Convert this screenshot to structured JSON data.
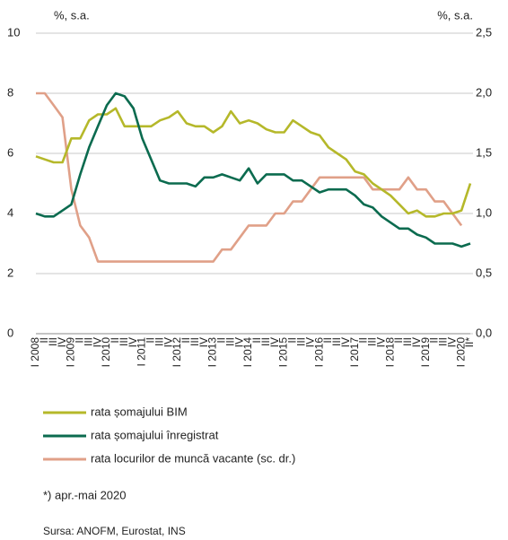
{
  "chart_data": {
    "type": "line",
    "y_label": "%, s.a.",
    "y2_label": "%, s.a.",
    "categories": [
      "I 2008",
      "II",
      "III",
      "IV",
      "I 2009",
      "II",
      "III",
      "IV",
      "I 2010",
      "II",
      "III",
      "IV",
      "I 2011",
      "II",
      "III",
      "IV",
      "I 2012",
      "II",
      "III",
      "IV",
      "I 2013",
      "II",
      "III",
      "IV",
      "I 2014",
      "II",
      "III",
      "IV",
      "I 2015",
      "II",
      "III",
      "IV",
      "I 2016",
      "II",
      "III",
      "IV",
      "I 2017",
      "II",
      "III",
      "IV",
      "I 2018",
      "II",
      "III",
      "IV",
      "I 2019",
      "II",
      "III",
      "IV",
      "I 2020",
      "II*"
    ],
    "series": [
      {
        "name": "rata șomajului BIM",
        "color": "#b5b82a",
        "values": [
          5.9,
          5.8,
          5.7,
          5.7,
          6.5,
          6.5,
          7.1,
          7.3,
          7.3,
          7.5,
          6.9,
          6.9,
          6.9,
          6.9,
          7.1,
          7.2,
          7.4,
          7.0,
          6.9,
          6.9,
          6.7,
          6.9,
          7.4,
          7.0,
          7.1,
          7.0,
          6.8,
          6.7,
          6.7,
          7.1,
          6.9,
          6.7,
          6.6,
          6.2,
          6.0,
          5.8,
          5.4,
          5.3,
          5.0,
          4.8,
          4.6,
          4.3,
          4.0,
          4.1,
          3.9,
          3.9,
          4.0,
          4.0,
          4.1,
          5.0
        ]
      },
      {
        "name": "rata șomajului înregistrat",
        "color": "#0b6b4f",
        "values": [
          4.0,
          3.9,
          3.9,
          4.1,
          4.3,
          5.3,
          6.2,
          6.9,
          7.6,
          8.0,
          7.9,
          7.5,
          6.5,
          5.8,
          5.1,
          5.0,
          5.0,
          5.0,
          4.9,
          5.2,
          5.2,
          5.3,
          5.2,
          5.1,
          5.5,
          5.0,
          5.3,
          5.3,
          5.3,
          5.1,
          5.1,
          4.9,
          4.7,
          4.8,
          4.8,
          4.8,
          4.6,
          4.3,
          4.2,
          3.9,
          3.7,
          3.5,
          3.5,
          3.3,
          3.2,
          3.0,
          3.0,
          3.0,
          2.9,
          3.0
        ]
      },
      {
        "name": "rata locurilor de muncă vacante (sc. dr.)",
        "color": "#e0a088",
        "axis": "y2",
        "values": [
          2.0,
          2.0,
          1.9,
          1.8,
          1.2,
          0.9,
          0.8,
          0.6,
          0.6,
          0.6,
          0.6,
          0.6,
          0.6,
          0.6,
          0.6,
          0.6,
          0.6,
          0.6,
          0.6,
          0.6,
          0.6,
          0.7,
          0.7,
          0.8,
          0.9,
          0.9,
          0.9,
          1.0,
          1.0,
          1.1,
          1.1,
          1.2,
          1.3,
          1.3,
          1.3,
          1.3,
          1.3,
          1.3,
          1.2,
          1.2,
          1.2,
          1.2,
          1.3,
          1.2,
          1.2,
          1.1,
          1.1,
          1.0,
          0.9,
          null
        ]
      }
    ],
    "ylim": [
      0,
      10
    ],
    "yticks": [
      0,
      2,
      4,
      6,
      8,
      10
    ],
    "y2lim": [
      0,
      2.5
    ],
    "y2ticks": [
      {
        "value": 0,
        "label": "0,0"
      },
      {
        "value": 0.5,
        "label": "0,5"
      },
      {
        "value": 1,
        "label": "1,0"
      },
      {
        "value": 1.5,
        "label": "1,5"
      },
      {
        "value": 2,
        "label": "2,0"
      },
      {
        "value": 2.5,
        "label": "2,5"
      }
    ],
    "grid": true,
    "note": "*) apr.-mai 2020",
    "source": "Sursa: ANOFM, Eurostat, INS"
  }
}
